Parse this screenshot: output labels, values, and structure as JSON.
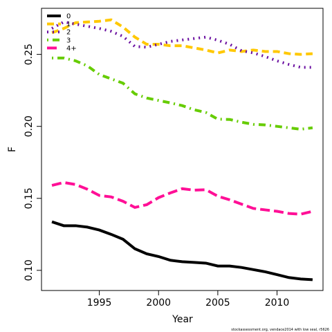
{
  "chart_data": {
    "type": "line",
    "x_label": "Year",
    "y_label": "F",
    "x": [
      1991,
      1992,
      1993,
      1994,
      1995,
      1996,
      1997,
      1998,
      1999,
      2000,
      2001,
      2002,
      2003,
      2004,
      2005,
      2006,
      2007,
      2008,
      2009,
      2010,
      2011,
      2012,
      2013
    ],
    "series": [
      {
        "name": "0",
        "color": "#000000",
        "values": [
          0.1337,
          0.131,
          0.131,
          0.13,
          0.128,
          0.125,
          0.1216,
          0.115,
          0.1115,
          0.1096,
          0.107,
          0.106,
          0.1055,
          0.105,
          0.103,
          0.103,
          0.102,
          0.1005,
          0.099,
          0.097,
          0.095,
          0.094,
          0.0935
        ]
      },
      {
        "name": "1",
        "color": "#ffc800",
        "values": [
          0.265,
          0.268,
          0.272,
          0.2725,
          0.273,
          0.274,
          0.269,
          0.262,
          0.257,
          0.257,
          0.256,
          0.256,
          0.2545,
          0.253,
          0.251,
          0.253,
          0.252,
          0.253,
          0.252,
          0.252,
          0.2505,
          0.25,
          0.2505
        ]
      },
      {
        "name": "2",
        "color": "#6a0fa0",
        "values": [
          0.268,
          0.2725,
          0.271,
          0.2695,
          0.268,
          0.266,
          0.2625,
          0.2555,
          0.255,
          0.257,
          0.259,
          0.26,
          0.261,
          0.262,
          0.2598,
          0.257,
          0.2525,
          0.251,
          0.2485,
          0.2455,
          0.243,
          0.241,
          0.241
        ]
      },
      {
        "name": "3",
        "color": "#66cc00",
        "values": [
          0.2475,
          0.2475,
          0.2455,
          0.242,
          0.236,
          0.233,
          0.23,
          0.2226,
          0.2197,
          0.218,
          0.2163,
          0.2144,
          0.2115,
          0.2096,
          0.205,
          0.2048,
          0.2029,
          0.2014,
          0.201,
          0.2,
          0.199,
          0.198,
          0.199
        ]
      },
      {
        "name": "4+",
        "color": "#ff0f96",
        "values": [
          0.159,
          0.161,
          0.1596,
          0.1563,
          0.152,
          0.151,
          0.148,
          0.1437,
          0.1456,
          0.1505,
          0.1538,
          0.1567,
          0.1557,
          0.156,
          0.1515,
          0.149,
          0.146,
          0.143,
          0.142,
          0.141,
          0.1395,
          0.139,
          0.141
        ]
      }
    ],
    "xlim": [
      1990.12,
      2013.88
    ],
    "xticks": [
      1995,
      2000,
      2005,
      2010
    ],
    "ylim": [
      0.086,
      0.282
    ],
    "yticks": [
      {
        "value": 0.1,
        "label": "0.10"
      },
      0.15,
      {
        "value": 0.2,
        "label": "0.20"
      },
      0.25
    ],
    "legend": "top-left",
    "source": "stockassessment.org, vendace2014 with low seal, r5626"
  }
}
